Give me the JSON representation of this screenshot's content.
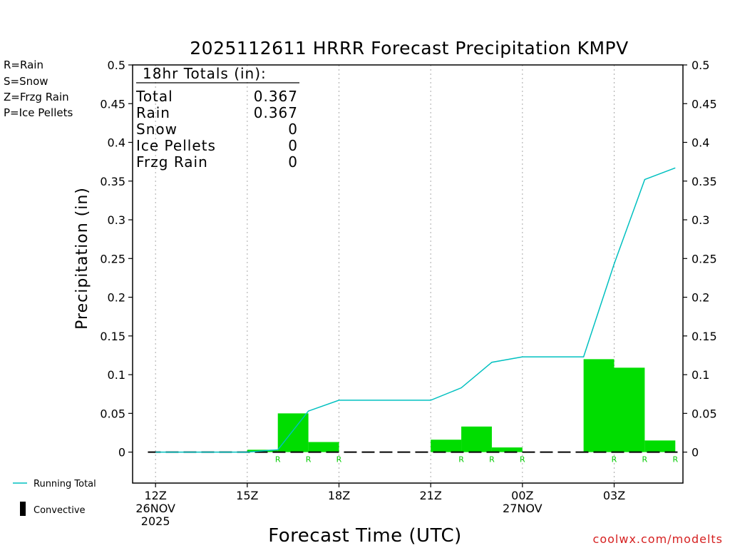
{
  "chart_data": {
    "type": "bar",
    "title": "2025112611 HRRR Forecast Precipitation KMPV",
    "xlabel": "Forecast Time (UTC)",
    "ylabel": "Precipitation (in)",
    "ylim": [
      -0.04,
      0.5
    ],
    "yticks": [
      0,
      0.05,
      0.1,
      0.15,
      0.2,
      0.25,
      0.3,
      0.35,
      0.4,
      0.45,
      0.5
    ],
    "ytick_labels": [
      "0",
      "0.05",
      "0.1",
      "0.15",
      "0.2",
      "0.25",
      "0.3",
      "0.35",
      "0.4",
      "0.45",
      "0.5"
    ],
    "xlim_hours": [
      11.25,
      29.25
    ],
    "xticks": [
      {
        "hour": 12,
        "lines": [
          "12Z",
          "26NOV",
          "2025"
        ]
      },
      {
        "hour": 15,
        "lines": [
          "15Z"
        ]
      },
      {
        "hour": 18,
        "lines": [
          "18Z"
        ]
      },
      {
        "hour": 21,
        "lines": [
          "21Z"
        ]
      },
      {
        "hour": 24,
        "lines": [
          "00Z",
          "27NOV"
        ]
      },
      {
        "hour": 27,
        "lines": [
          "03Z"
        ]
      }
    ],
    "grid": "vertical dotted at x ticks",
    "hourly_precip": [
      {
        "hour_end": 12,
        "value": 0,
        "type": ""
      },
      {
        "hour_end": 13,
        "value": 0,
        "type": ""
      },
      {
        "hour_end": 14,
        "value": 0,
        "type": ""
      },
      {
        "hour_end": 15,
        "value": 0,
        "type": ""
      },
      {
        "hour_end": 16,
        "value": 0.003,
        "type": "R"
      },
      {
        "hour_end": 17,
        "value": 0.05,
        "type": "R"
      },
      {
        "hour_end": 18,
        "value": 0.013,
        "type": "R"
      },
      {
        "hour_end": 19,
        "value": 0,
        "type": ""
      },
      {
        "hour_end": 20,
        "value": 0,
        "type": ""
      },
      {
        "hour_end": 21,
        "value": 0,
        "type": ""
      },
      {
        "hour_end": 22,
        "value": 0.016,
        "type": "R"
      },
      {
        "hour_end": 23,
        "value": 0.033,
        "type": "R"
      },
      {
        "hour_end": 24,
        "value": 0.006,
        "type": "R"
      },
      {
        "hour_end": 25,
        "value": 0,
        "type": ""
      },
      {
        "hour_end": 26,
        "value": 0,
        "type": ""
      },
      {
        "hour_end": 27,
        "value": 0.12,
        "type": "R"
      },
      {
        "hour_end": 28,
        "value": 0.109,
        "type": "R"
      },
      {
        "hour_end": 29,
        "value": 0.015,
        "type": "R"
      }
    ],
    "series": [
      {
        "name": "Running Total",
        "color": "#00c0c0",
        "x": [
          12,
          13,
          14,
          15,
          16,
          17,
          18,
          19,
          20,
          21,
          22,
          23,
          24,
          25,
          26,
          27,
          28,
          29
        ],
        "values": [
          0,
          0,
          0,
          0,
          0.003,
          0.053,
          0.067,
          0.067,
          0.067,
          0.067,
          0.083,
          0.116,
          0.123,
          0.123,
          0.123,
          0.243,
          0.352,
          0.367
        ]
      }
    ],
    "bar_color": "#00dd00",
    "totals_box": {
      "header": "18hr Totals (in):",
      "rows": [
        {
          "label": "Total",
          "value": "0.367"
        },
        {
          "label": "Rain",
          "value": "0.367"
        },
        {
          "label": "Snow",
          "value": "0"
        },
        {
          "label": "Ice Pellets",
          "value": "0"
        },
        {
          "label": "Frzg Rain",
          "value": "0"
        }
      ]
    },
    "type_legend": [
      {
        "text": "R=Rain",
        "color": "#00dd00"
      },
      {
        "text": "S=Snow",
        "color": "#3a3ae8"
      },
      {
        "text": "Z=Frzg Rain",
        "color": "#f08c3c"
      },
      {
        "text": "P=Ice Pellets",
        "color": "#e8208c"
      }
    ],
    "series_legend": [
      {
        "text": "Running Total",
        "swatch": "line",
        "color": "#00c0c0"
      },
      {
        "text": "Convective",
        "swatch": "bar",
        "color": "#000000"
      }
    ]
  },
  "credit": "coolwx.com/modelts"
}
